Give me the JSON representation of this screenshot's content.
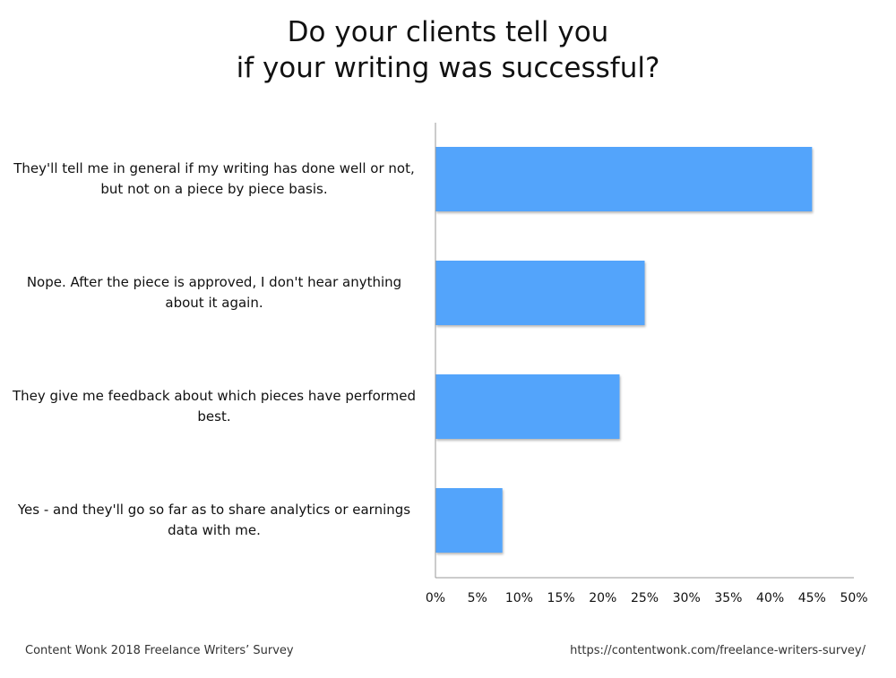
{
  "chart_data": {
    "type": "bar",
    "orientation": "horizontal",
    "title": "Do your clients tell you if your writing was successful?",
    "title_lines": [
      "Do your clients tell you",
      "if your writing was successful?"
    ],
    "categories": [
      "They'll tell me in general if my writing has done well or not, but not on a piece by piece basis.",
      "Nope. After the piece is approved, I don't hear anything about it again.",
      "They give me feedback about which pieces have performed best.",
      "Yes - and they'll go so far as to share analytics or earnings data with me."
    ],
    "values": [
      45,
      25,
      22,
      8
    ],
    "unit": "%",
    "xlim": [
      0,
      50
    ],
    "xticks": [
      0,
      5,
      10,
      15,
      20,
      25,
      30,
      35,
      40,
      45,
      50
    ],
    "xtick_labels": [
      "0%",
      "5%",
      "10%",
      "15%",
      "20%",
      "25%",
      "30%",
      "35%",
      "40%",
      "45%",
      "50%"
    ],
    "xlabel": "",
    "ylabel": "",
    "grid": false,
    "legend": "none",
    "bar_color": "#52a4fb"
  },
  "footer": {
    "source": "Content Wonk 2018 Freelance Writers’ Survey",
    "url": "https://contentwonk.com/freelance-writers-survey/"
  }
}
